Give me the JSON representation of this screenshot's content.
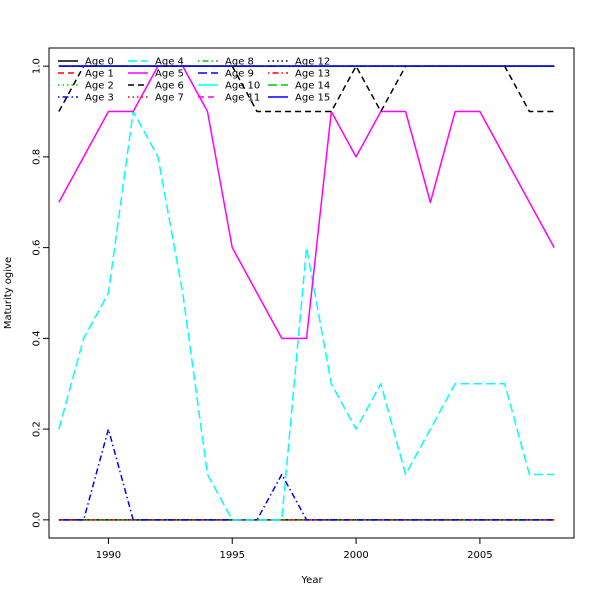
{
  "chart_data": {
    "type": "line",
    "title": "",
    "xlabel": "Year",
    "ylabel": "Maturity ogive",
    "xlim": [
      1987.6,
      2008.8
    ],
    "ylim": [
      -0.04,
      1.04
    ],
    "x_ticks": [
      1990,
      1995,
      2000,
      2005
    ],
    "y_ticks": [
      0.0,
      0.2,
      0.4,
      0.6,
      0.8,
      1.0
    ],
    "x_tick_labels": [
      "1990",
      "1995",
      "2000",
      "2005"
    ],
    "y_tick_labels": [
      "0.0",
      "0.2",
      "0.4",
      "0.6",
      "0.8",
      "1.0"
    ],
    "grid": false,
    "legend_position": "top-left",
    "x": [
      1988,
      1989,
      1990,
      1991,
      1992,
      1993,
      1994,
      1995,
      1996,
      1997,
      1998,
      1999,
      2000,
      2001,
      2002,
      2003,
      2004,
      2005,
      2006,
      2007,
      2008
    ],
    "series": [
      {
        "name": "Age 0",
        "color": "#000000",
        "dash": "solid",
        "values": [
          0,
          0,
          0,
          0,
          0,
          0,
          0,
          0,
          0,
          0,
          0,
          0,
          0,
          0,
          0,
          0,
          0,
          0,
          0,
          0,
          0
        ]
      },
      {
        "name": "Age 1",
        "color": "#ff0000",
        "dash": "dashed",
        "values": [
          0,
          0,
          0,
          0,
          0,
          0,
          0,
          0,
          0,
          0,
          0,
          0,
          0,
          0,
          0,
          0,
          0,
          0,
          0,
          0,
          0
        ]
      },
      {
        "name": "Age 2",
        "color": "#00cd00",
        "dash": "dotted",
        "values": [
          0,
          0,
          0,
          0,
          0,
          0,
          0,
          0,
          0,
          0,
          0,
          0,
          0,
          0,
          0,
          0,
          0,
          0,
          0,
          0,
          0
        ]
      },
      {
        "name": "Age 3",
        "color": "#0000ff",
        "dash": "dotdash",
        "values": [
          0,
          0,
          0.2,
          0,
          0,
          0,
          0,
          0,
          0,
          0.1,
          0,
          0,
          0,
          0,
          0,
          0,
          0,
          0,
          0,
          0,
          0
        ]
      },
      {
        "name": "Age 4",
        "color": "#00ffff",
        "dash": "longdash",
        "values": [
          0.2,
          0.4,
          0.5,
          0.9,
          0.8,
          0.5,
          0.1,
          0,
          0,
          0,
          0.6,
          0.3,
          0.2,
          0.3,
          0.1,
          0.2,
          0.3,
          0.3,
          0.3,
          0.1,
          0.1
        ]
      },
      {
        "name": "Age 5",
        "color": "#ff00ff",
        "dash": "solid",
        "values": [
          0.7,
          0.8,
          0.9,
          0.9,
          1.0,
          1.0,
          0.9,
          0.6,
          0.5,
          0.4,
          0.4,
          0.9,
          0.8,
          0.9,
          0.9,
          0.7,
          0.9,
          0.9,
          0.8,
          0.7,
          0.6
        ]
      },
      {
        "name": "Age 6",
        "color": "#000000",
        "dash": "dashed",
        "values": [
          0.9,
          1.0,
          1.0,
          1.0,
          1.0,
          1.0,
          1.0,
          1.0,
          0.9,
          0.9,
          0.9,
          0.9,
          1.0,
          0.9,
          1.0,
          1.0,
          1.0,
          1.0,
          1.0,
          0.9,
          0.9
        ]
      },
      {
        "name": "Age 7",
        "color": "#ff0000",
        "dash": "dotted",
        "values": [
          1,
          1,
          1,
          1,
          1,
          1,
          1,
          1,
          1,
          1,
          1,
          1,
          1,
          1,
          1,
          1,
          1,
          1,
          1,
          1,
          1
        ]
      },
      {
        "name": "Age 8",
        "color": "#00cd00",
        "dash": "dotdash",
        "values": [
          1,
          1,
          1,
          1,
          1,
          1,
          1,
          1,
          1,
          1,
          1,
          1,
          1,
          1,
          1,
          1,
          1,
          1,
          1,
          1,
          1
        ]
      },
      {
        "name": "Age 9",
        "color": "#0000ff",
        "dash": "longdash",
        "values": [
          1,
          1,
          1,
          1,
          1,
          1,
          1,
          1,
          1,
          1,
          1,
          1,
          1,
          1,
          1,
          1,
          1,
          1,
          1,
          1,
          1
        ]
      },
      {
        "name": "Age 10",
        "color": "#00ffff",
        "dash": "solid",
        "values": [
          1,
          1,
          1,
          1,
          1,
          1,
          1,
          1,
          1,
          1,
          1,
          1,
          1,
          1,
          1,
          1,
          1,
          1,
          1,
          1,
          1
        ]
      },
      {
        "name": "Age 11",
        "color": "#ff00ff",
        "dash": "dashed",
        "values": [
          1,
          1,
          1,
          1,
          1,
          1,
          1,
          1,
          1,
          1,
          1,
          1,
          1,
          1,
          1,
          1,
          1,
          1,
          1,
          1,
          1
        ]
      },
      {
        "name": "Age 12",
        "color": "#000000",
        "dash": "dotted",
        "values": [
          1,
          1,
          1,
          1,
          1,
          1,
          1,
          1,
          1,
          1,
          1,
          1,
          1,
          1,
          1,
          1,
          1,
          1,
          1,
          1,
          1
        ]
      },
      {
        "name": "Age 13",
        "color": "#ff0000",
        "dash": "dotdash",
        "values": [
          1,
          1,
          1,
          1,
          1,
          1,
          1,
          1,
          1,
          1,
          1,
          1,
          1,
          1,
          1,
          1,
          1,
          1,
          1,
          1,
          1
        ]
      },
      {
        "name": "Age 14",
        "color": "#00cd00",
        "dash": "longdash",
        "values": [
          1,
          1,
          1,
          1,
          1,
          1,
          1,
          1,
          1,
          1,
          1,
          1,
          1,
          1,
          1,
          1,
          1,
          1,
          1,
          1,
          1
        ]
      },
      {
        "name": "Age 15",
        "color": "#0000ff",
        "dash": "solid",
        "values": [
          1,
          1,
          1,
          1,
          1,
          1,
          1,
          1,
          1,
          1,
          1,
          1,
          1,
          1,
          1,
          1,
          1,
          1,
          1,
          1,
          1
        ]
      }
    ]
  }
}
